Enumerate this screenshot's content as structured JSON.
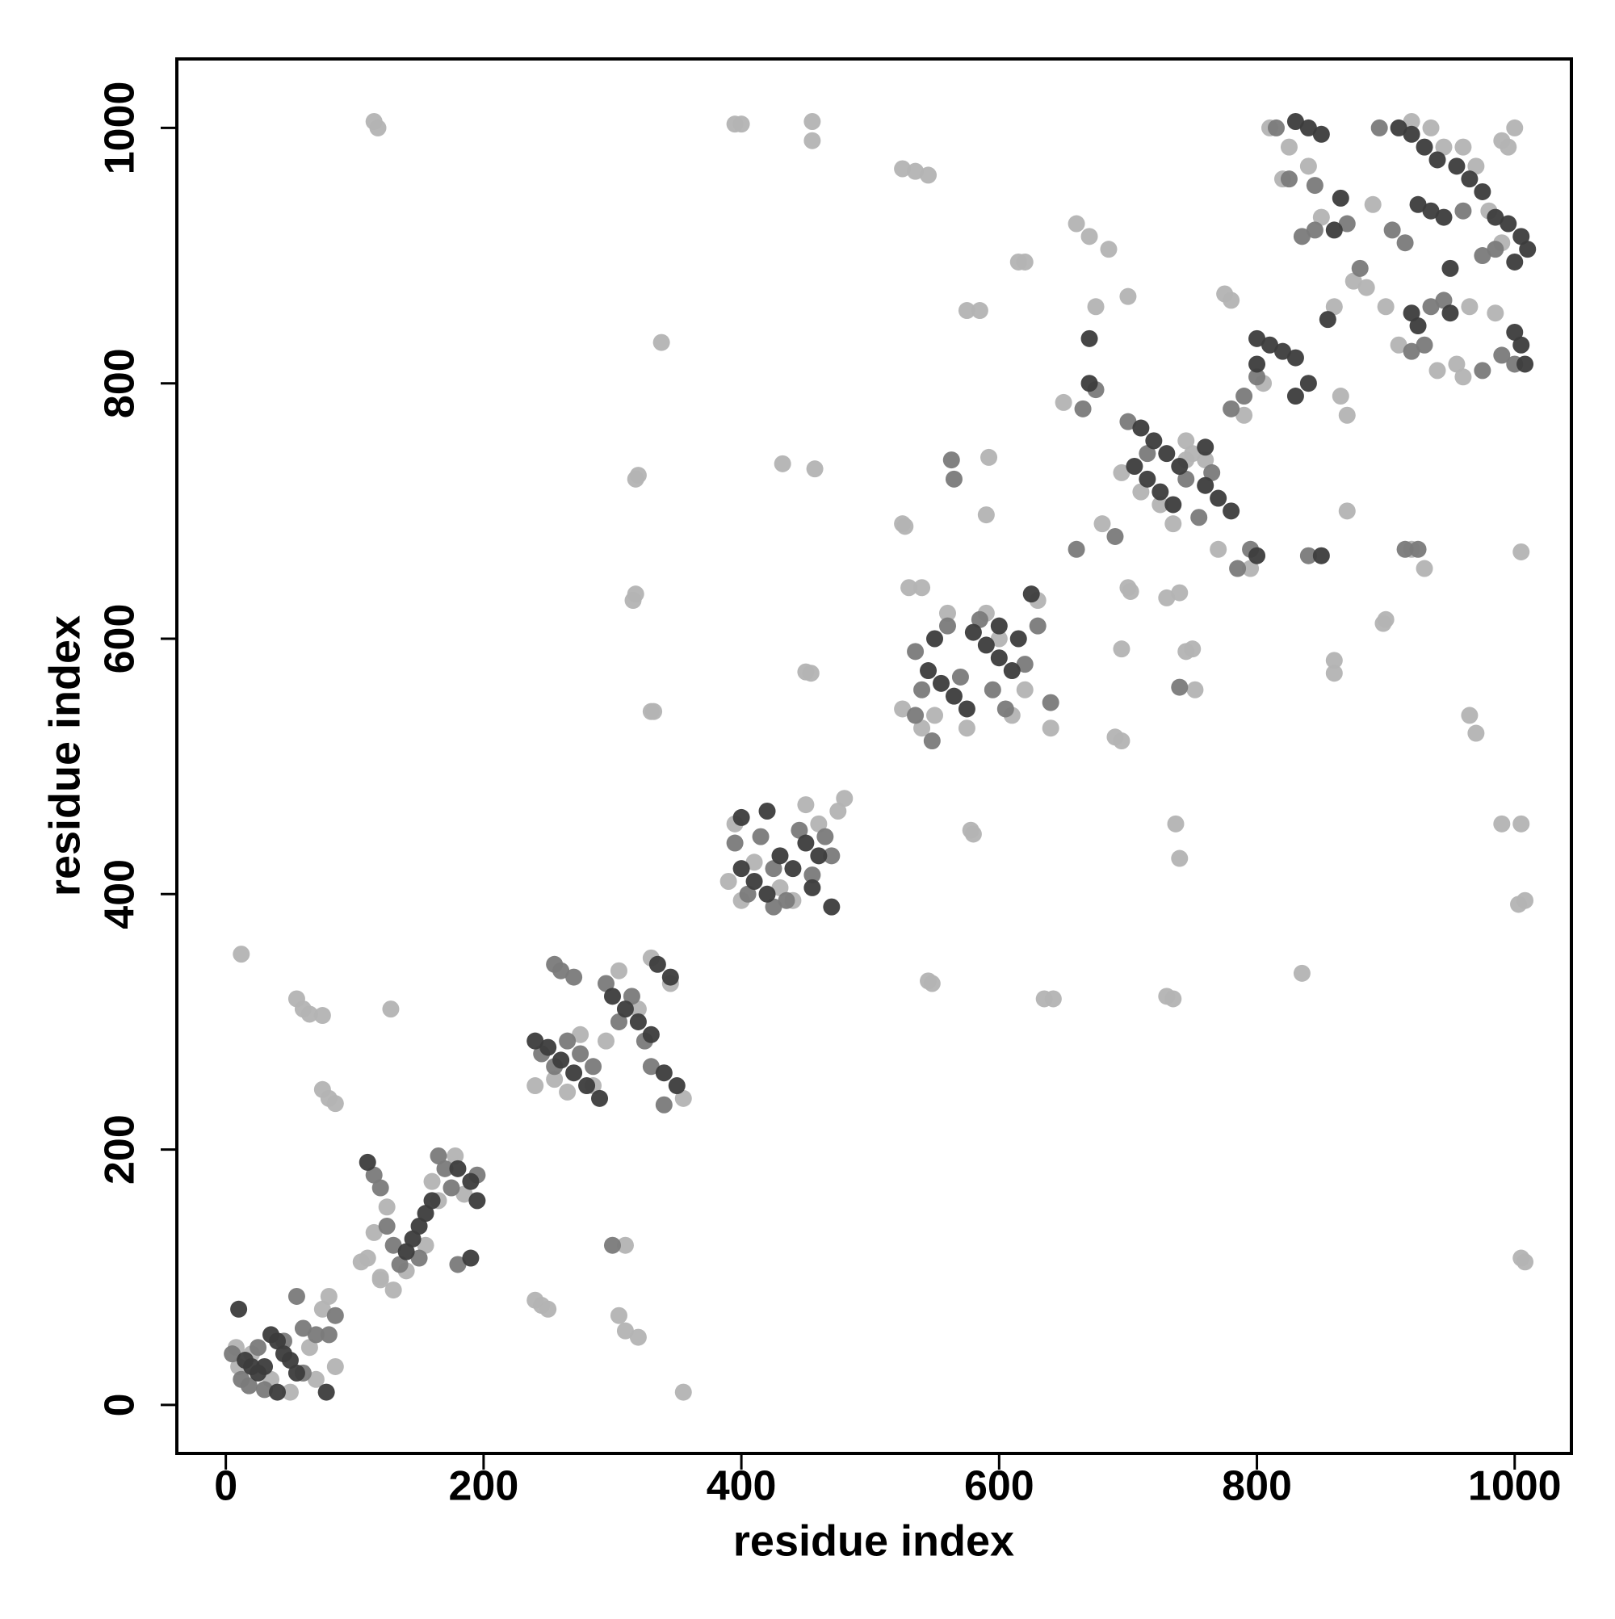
{
  "chart_data": {
    "type": "scatter",
    "x_label": "residue index",
    "y_label": "residue index",
    "xlim": [
      -38,
      1044
    ],
    "ylim": [
      -38,
      1054
    ],
    "xticks": [
      0,
      200,
      400,
      600,
      800,
      1000
    ],
    "yticks": [
      0,
      200,
      400,
      600,
      800,
      1000
    ],
    "grid": false,
    "series": [
      {
        "color": "#b3b3b3",
        "x": [
          115,
          118,
          395,
          400,
          455,
          455,
          525,
          535,
          545,
          615,
          620,
          575,
          585,
          338,
          320,
          318,
          432,
          457,
          592,
          590,
          525,
          527,
          318,
          316,
          330,
          332,
          450,
          454,
          12,
          55,
          60,
          65,
          75,
          128,
          75,
          80,
          85,
          240,
          245,
          250,
          310,
          305,
          310,
          320,
          355,
          545,
          548,
          578,
          580,
          635,
          642,
          730,
          735,
          737,
          740,
          750,
          745,
          730,
          740,
          752,
          695,
          700,
          702,
          690,
          695,
          835,
          860,
          860,
          870,
          900,
          898,
          965,
          970,
          990,
          1005,
          1003,
          1008,
          1005,
          1008,
          1005,
          700,
          685,
          110,
          120,
          130,
          105,
          985,
          990,
          995,
          930,
          920,
          750,
          745,
          8,
          10,
          20,
          35,
          50,
          70,
          75,
          80,
          85,
          65,
          115,
          125,
          140,
          155,
          160,
          165,
          185,
          178,
          120,
          240,
          255,
          265,
          275,
          285,
          295,
          305,
          320,
          330,
          345,
          355,
          390,
          400,
          410,
          430,
          440,
          450,
          460,
          475,
          480,
          395,
          525,
          540,
          550,
          560,
          575,
          590,
          600,
          610,
          620,
          630,
          640,
          530,
          540,
          650,
          660,
          670,
          675,
          680,
          695,
          710,
          725,
          735,
          745,
          760,
          770,
          775,
          780,
          790,
          795,
          805,
          810,
          820,
          825,
          840,
          850,
          860,
          865,
          870,
          875,
          885,
          890,
          900,
          910,
          920,
          935,
          945,
          960,
          970,
          980,
          990,
          1000,
          965,
          940,
          955,
          960
        ],
        "values": [
          1005,
          1000,
          1003,
          1003,
          1005,
          990,
          968,
          966,
          963,
          895,
          895,
          857,
          857,
          832,
          728,
          725,
          737,
          733,
          742,
          697,
          690,
          688,
          635,
          630,
          543,
          543,
          574,
          573,
          353,
          318,
          310,
          306,
          305,
          310,
          247,
          240,
          236,
          82,
          78,
          75,
          125,
          70,
          58,
          53,
          10,
          332,
          330,
          450,
          447,
          318,
          318,
          320,
          318,
          455,
          428,
          592,
          590,
          632,
          636,
          560,
          592,
          640,
          637,
          523,
          520,
          338,
          583,
          573,
          700,
          615,
          612,
          540,
          526,
          455,
          455,
          392,
          395,
          115,
          112,
          668,
          868,
          905,
          115,
          98,
          90,
          112,
          855,
          990,
          985,
          655,
          670,
          745,
          740,
          45,
          30,
          40,
          20,
          10,
          20,
          75,
          85,
          30,
          45,
          135,
          155,
          105,
          125,
          175,
          160,
          165,
          195,
          100,
          250,
          255,
          245,
          290,
          250,
          285,
          340,
          310,
          350,
          330,
          240,
          410,
          395,
          425,
          405,
          395,
          470,
          455,
          465,
          475,
          455,
          545,
          530,
          540,
          620,
          530,
          620,
          600,
          540,
          560,
          630,
          530,
          640,
          640,
          785,
          925,
          915,
          860,
          690,
          730,
          715,
          705,
          690,
          755,
          740,
          670,
          870,
          865,
          775,
          655,
          800,
          1000,
          960,
          985,
          970,
          930,
          860,
          790,
          775,
          880,
          875,
          940,
          860,
          830,
          1005,
          1000,
          985,
          985,
          970,
          935,
          910,
          1000,
          860,
          810,
          815,
          805
        ]
      },
      {
        "color": "#7a7a7a",
        "x": [
          5,
          12,
          18,
          25,
          30,
          45,
          55,
          60,
          70,
          80,
          85,
          60,
          115,
          120,
          125,
          130,
          135,
          150,
          165,
          170,
          175,
          195,
          180,
          245,
          255,
          265,
          275,
          285,
          295,
          305,
          315,
          325,
          330,
          340,
          255,
          260,
          270,
          300,
          395,
          405,
          415,
          425,
          435,
          445,
          455,
          465,
          470,
          425,
          535,
          540,
          560,
          570,
          585,
          595,
          605,
          620,
          630,
          640,
          535,
          548,
          565,
          563,
          660,
          665,
          675,
          690,
          700,
          715,
          745,
          755,
          765,
          780,
          790,
          785,
          795,
          800,
          740,
          845,
          840,
          815,
          825,
          835,
          845,
          870,
          880,
          895,
          905,
          915,
          935,
          945,
          960,
          975,
          985,
          920,
          930,
          1000,
          975,
          990,
          915,
          925
        ],
        "values": [
          40,
          20,
          15,
          45,
          12,
          50,
          85,
          60,
          55,
          55,
          70,
          25,
          180,
          170,
          140,
          125,
          110,
          115,
          195,
          185,
          170,
          180,
          110,
          275,
          265,
          285,
          275,
          265,
          330,
          300,
          320,
          285,
          265,
          235,
          345,
          340,
          335,
          125,
          440,
          400,
          445,
          420,
          395,
          450,
          415,
          445,
          430,
          390,
          590,
          560,
          610,
          570,
          615,
          560,
          545,
          580,
          610,
          550,
          540,
          520,
          725,
          740,
          670,
          780,
          795,
          680,
          770,
          745,
          725,
          695,
          730,
          780,
          790,
          655,
          670,
          805,
          562,
          955,
          665,
          1000,
          960,
          915,
          920,
          925,
          890,
          1000,
          920,
          910,
          860,
          865,
          935,
          900,
          905,
          825,
          830,
          815,
          810,
          822,
          670,
          670
        ]
      },
      {
        "color": "#3c3c3c",
        "x": [
          10,
          15,
          20,
          25,
          30,
          35,
          40,
          45,
          50,
          55,
          40,
          78,
          145,
          150,
          155,
          160,
          140,
          180,
          190,
          195,
          190,
          110,
          250,
          260,
          270,
          280,
          290,
          300,
          310,
          320,
          330,
          335,
          345,
          350,
          340,
          240,
          400,
          410,
          420,
          430,
          440,
          450,
          460,
          470,
          400,
          420,
          455,
          545,
          555,
          565,
          575,
          580,
          590,
          600,
          610,
          600,
          615,
          625,
          550,
          670,
          670,
          710,
          720,
          730,
          740,
          705,
          715,
          725,
          735,
          760,
          770,
          780,
          760,
          800,
          850,
          800,
          810,
          820,
          830,
          830,
          840,
          800,
          830,
          840,
          850,
          860,
          865,
          855,
          910,
          920,
          930,
          940,
          955,
          965,
          975,
          985,
          995,
          1005,
          1010,
          925,
          935,
          945,
          950,
          920,
          925,
          1000,
          1005,
          1008,
          1000,
          950
        ],
        "values": [
          75,
          35,
          30,
          25,
          30,
          55,
          50,
          40,
          35,
          25,
          10,
          10,
          130,
          140,
          150,
          160,
          120,
          185,
          175,
          160,
          115,
          190,
          280,
          270,
          260,
          250,
          240,
          320,
          310,
          300,
          290,
          345,
          335,
          250,
          260,
          285,
          420,
          410,
          400,
          430,
          420,
          440,
          430,
          390,
          460,
          465,
          405,
          575,
          565,
          555,
          545,
          605,
          595,
          585,
          575,
          610,
          600,
          635,
          600,
          835,
          800,
          765,
          755,
          745,
          735,
          735,
          725,
          715,
          705,
          750,
          710,
          700,
          720,
          665,
          665,
          835,
          830,
          825,
          820,
          790,
          800,
          815,
          1005,
          1000,
          995,
          920,
          945,
          850,
          1000,
          995,
          985,
          975,
          970,
          960,
          950,
          930,
          925,
          915,
          905,
          940,
          935,
          930,
          890,
          855,
          845,
          840,
          830,
          815,
          895,
          855
        ]
      }
    ]
  }
}
